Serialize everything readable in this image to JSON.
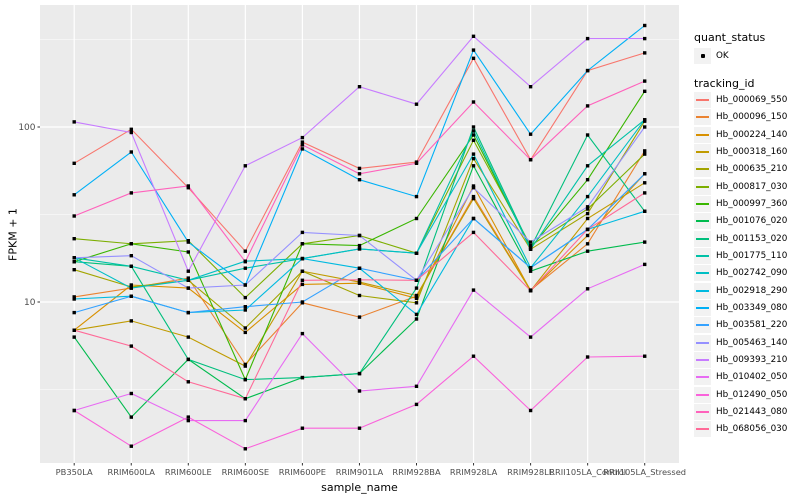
{
  "chart_data": {
    "type": "line",
    "title": "",
    "xlabel": "sample_name",
    "ylabel": "FPKM + 1",
    "y_scale": "log10",
    "y_ticks": [
      10,
      100
    ],
    "y_minor_ticks": [
      3.162,
      31.62,
      316.2
    ],
    "ylim": [
      1.2,
      500
    ],
    "grid": "on",
    "legend_position": "right",
    "panel_bg": "#EBEBEB",
    "grid_color": "#FFFFFF",
    "point_color": "#000000",
    "tick_label_color": "#4D4D4D",
    "legend": {
      "shape_title": "quant_status",
      "shape_item_label": "OK",
      "color_title": "tracking_id"
    },
    "categories": [
      "PB350LA",
      "RRIM600LA",
      "RRIM600LE",
      "RRIM600SE",
      "RRIM600PE",
      "RRIM901LA",
      "RRIM928BA",
      "RRIM928LA",
      "RRIM928LE",
      "RRII105LA_Control",
      "RRII105LA_Stressed"
    ],
    "series": [
      {
        "name": "Hb_000069_550",
        "color": "#F8766D",
        "values": [
          62,
          97,
          45,
          19.5,
          82,
          58,
          63,
          247,
          65,
          210,
          265
        ]
      },
      {
        "name": "Hb_000096_150",
        "color": "#EA8331",
        "values": [
          10.7,
          12,
          13.7,
          4.4,
          9.9,
          8.2,
          10.8,
          40,
          11.7,
          21.5,
          73
        ]
      },
      {
        "name": "Hb_000224_140",
        "color": "#D89000",
        "values": [
          6.9,
          12.5,
          12,
          6.7,
          12.6,
          12.8,
          10.5,
          46,
          11.6,
          24,
          54
        ]
      },
      {
        "name": "Hb_000318_160",
        "color": "#C09B00",
        "values": [
          6.9,
          7.8,
          6.3,
          4.3,
          15,
          13,
          10.9,
          39,
          11.6,
          30,
          48
        ]
      },
      {
        "name": "Hb_000635_210",
        "color": "#A3A500",
        "values": [
          15.3,
          12.2,
          13.3,
          7.1,
          15,
          10.9,
          9.9,
          66,
          20,
          32,
          108
        ]
      },
      {
        "name": "Hb_000817_030",
        "color": "#7CAE00",
        "values": [
          23,
          21.5,
          22.4,
          10.6,
          21.5,
          24,
          19,
          84,
          21,
          34,
          70
        ]
      },
      {
        "name": "Hb_000997_360",
        "color": "#39B600",
        "values": [
          17,
          21.5,
          19.3,
          3.6,
          21.5,
          21,
          30,
          90,
          20.4,
          50,
          160
        ]
      },
      {
        "name": "Hb_001076_020",
        "color": "#00BB4E",
        "values": [
          6.3,
          2.2,
          4.7,
          2.8,
          3.7,
          3.9,
          8,
          60,
          15,
          19.5,
          22
        ]
      },
      {
        "name": "Hb_001153_020",
        "color": "#00BF7D",
        "values": [
          17,
          16,
          4.7,
          3.6,
          3.7,
          3.9,
          12,
          100,
          20.4,
          90,
          33
        ]
      },
      {
        "name": "Hb_001775_110",
        "color": "#00C1A7",
        "values": [
          17.9,
          16,
          13.3,
          15.6,
          17.7,
          20.1,
          19,
          95,
          20,
          60,
          110
        ]
      },
      {
        "name": "Hb_002742_090",
        "color": "#00BFC4",
        "values": [
          17.9,
          12,
          13.3,
          17.1,
          17.7,
          20.1,
          19,
          70,
          15.7,
          40,
          110
        ]
      },
      {
        "name": "Hb_002918_290",
        "color": "#00BAE0",
        "values": [
          10.4,
          10.8,
          8.7,
          9,
          17.7,
          15.6,
          8.5,
          30,
          15.7,
          26,
          33
        ]
      },
      {
        "name": "Hb_003349_080",
        "color": "#00B0F6",
        "values": [
          41,
          72,
          22,
          12.5,
          75,
          50,
          40,
          275,
          91,
          210,
          380
        ]
      },
      {
        "name": "Hb_003581_220",
        "color": "#35A2FF",
        "values": [
          8.7,
          10.8,
          8.7,
          9.4,
          10,
          15.6,
          13.3,
          30,
          15.7,
          26,
          54
        ]
      },
      {
        "name": "Hb_005463_140",
        "color": "#9590FF",
        "values": [
          17.9,
          18.4,
          12,
          12.5,
          25,
          24,
          13.3,
          45,
          22,
          35,
          100
        ]
      },
      {
        "name": "Hb_009393_210",
        "color": "#C77CFF",
        "values": [
          107,
          93,
          15,
          60,
          87,
          170,
          135,
          330,
          170,
          320,
          320
        ]
      },
      {
        "name": "Hb_010402_050",
        "color": "#E76BF3",
        "values": [
          2.4,
          3,
          2.1,
          2.1,
          6.6,
          3.1,
          3.3,
          11.7,
          6.3,
          11.9,
          16.4
        ]
      },
      {
        "name": "Hb_012490_050",
        "color": "#FA62DB",
        "values": [
          2.4,
          1.5,
          2.2,
          1.45,
          1.9,
          1.9,
          2.6,
          4.9,
          2.4,
          4.85,
          4.9
        ]
      },
      {
        "name": "Hb_021443_080",
        "color": "#FF62BC",
        "values": [
          31,
          42,
          46,
          17,
          79,
          54,
          62,
          139,
          65,
          132,
          183
        ]
      },
      {
        "name": "Hb_068056_030",
        "color": "#FF6A98",
        "values": [
          6.9,
          5.6,
          3.5,
          2.8,
          13.3,
          13.4,
          13.3,
          25,
          11.6,
          26,
          42
        ]
      }
    ]
  }
}
